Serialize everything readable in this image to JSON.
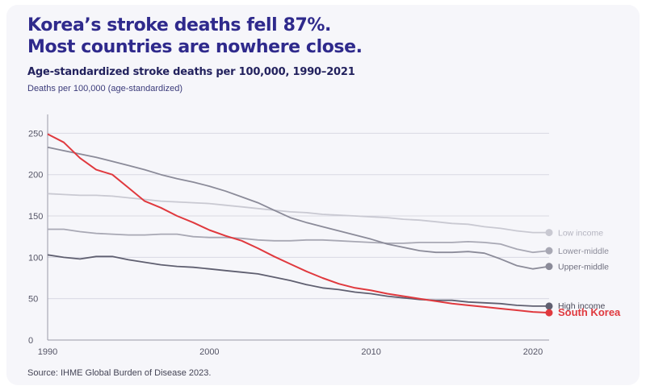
{
  "header": {
    "title_line1": "Korea’s stroke deaths fell 87%.",
    "title_line2": "Most countries are nowhere close.",
    "subtitle": "Age-standardized stroke deaths per 100,000, 1990–2021",
    "unit_label": "Deaths per 100,000 (age-standardized)"
  },
  "footer": {
    "source": "Source: IHME Global Burden of Disease 2023."
  },
  "chart_data": {
    "type": "line",
    "title": "Korea’s stroke deaths fell 87%. Most countries are nowhere close.",
    "subtitle": "Age-standardized stroke deaths per 100,000, 1990–2021",
    "ylabel": "Deaths per 100,000 (age-standardized)",
    "xlabel": "",
    "xlim": [
      1990,
      2021
    ],
    "ylim": [
      0,
      265
    ],
    "x_ticks": [
      1990,
      2000,
      2010,
      2020
    ],
    "y_ticks": [
      0,
      50,
      100,
      150,
      200,
      250
    ],
    "grid": "horizontal",
    "legend": "direct labels at line ends (right)",
    "x": [
      1990,
      1991,
      1992,
      1993,
      1994,
      1995,
      1996,
      1997,
      1998,
      1999,
      2000,
      2001,
      2002,
      2003,
      2004,
      2005,
      2006,
      2007,
      2008,
      2009,
      2010,
      2011,
      2012,
      2013,
      2014,
      2015,
      2016,
      2017,
      2018,
      2019,
      2020,
      2021
    ],
    "series": [
      {
        "name": "Low income",
        "color": "#c9c9d2",
        "label_color": "#b4b4c0",
        "label_bold": false,
        "values": [
          177,
          176,
          175,
          175,
          174,
          172,
          170,
          168,
          167,
          166,
          165,
          163,
          161,
          159,
          157,
          155,
          154,
          152,
          151,
          150,
          149,
          148,
          146,
          145,
          143,
          141,
          140,
          137,
          135,
          132,
          130,
          130
        ]
      },
      {
        "name": "Lower-middle",
        "color": "#a8a8b4",
        "label_color": "#8c8c9a",
        "label_bold": false,
        "values": [
          134,
          134,
          131,
          129,
          128,
          127,
          127,
          128,
          128,
          125,
          124,
          124,
          123,
          121,
          120,
          120,
          121,
          121,
          120,
          119,
          118,
          117,
          117,
          118,
          118,
          118,
          119,
          118,
          116,
          110,
          106,
          108
        ]
      },
      {
        "name": "Upper-middle",
        "color": "#8b8b99",
        "label_color": "#6e6e7e",
        "label_bold": false,
        "values": [
          233,
          229,
          225,
          221,
          216,
          211,
          206,
          200,
          195,
          191,
          186,
          180,
          173,
          166,
          157,
          148,
          142,
          137,
          132,
          127,
          122,
          116,
          112,
          108,
          106,
          106,
          107,
          105,
          98,
          90,
          86,
          89
        ]
      },
      {
        "name": "High income",
        "color": "#5f5f70",
        "label_color": "#4a4a5a",
        "label_bold": false,
        "values": [
          103,
          100,
          98,
          101,
          101,
          97,
          94,
          91,
          89,
          88,
          86,
          84,
          82,
          80,
          76,
          72,
          67,
          63,
          61,
          58,
          56,
          53,
          51,
          49,
          48,
          48,
          46,
          45,
          44,
          42,
          41,
          41
        ]
      },
      {
        "name": "South Korea",
        "color": "#e0393e",
        "label_color": "#e0393e",
        "label_bold": true,
        "values": [
          249,
          239,
          220,
          206,
          200,
          184,
          168,
          160,
          150,
          142,
          133,
          126,
          120,
          111,
          101,
          92,
          83,
          75,
          68,
          63,
          60,
          56,
          53,
          50,
          47,
          44,
          42,
          40,
          38,
          36,
          34,
          33
        ]
      }
    ]
  }
}
